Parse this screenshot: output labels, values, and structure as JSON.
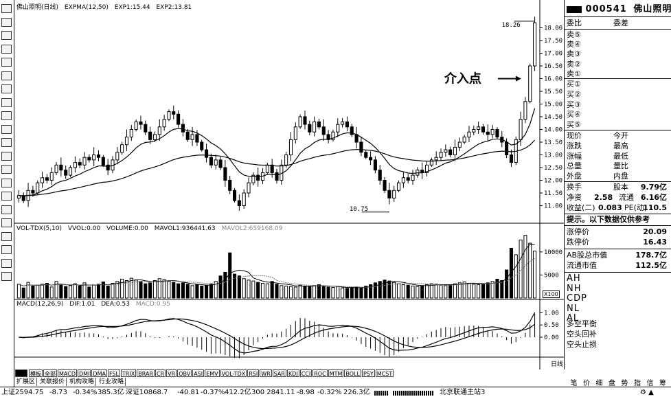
{
  "toolbar": {
    "icons": [
      "logo-icon",
      "grid-icon",
      "list-icon",
      "chart-icon",
      "table-icon",
      "book-icon",
      "cycle-icon",
      "pie-icon",
      "news-icon",
      "card-icon",
      "layout-icon",
      "bars-icon",
      "calc-icon",
      "tools-icon",
      "lock-icon",
      "compass-icon",
      "doc-icon",
      "pen-icon",
      "move-icon",
      "arrow-up-icon",
      "arrow-down-icon"
    ]
  },
  "price_panel": {
    "header": "佛山照明(日线)  EXPMA(12,50)  EXP1:15.44  EXP2:13.81",
    "title": "佛山照明(日线)",
    "ind": "EXPMA(12,50)",
    "exp1": "EXP1:15.44",
    "exp2": "EXP2:13.81",
    "high_label": "18.26",
    "low_label": "10.75",
    "annotation": "介入点"
  },
  "volume_panel": {
    "name": "VOL-TDX(5,10)",
    "vvol": "VVOL:0.00",
    "volume": "VOLUME:0.00",
    "mavol1": "MAVOL1:936441.63",
    "mavol2": "MAVOL2:659168.09",
    "unit": "X100"
  },
  "macd_panel": {
    "name": "MACD(12,26,9)",
    "dif": "DIF:1.01",
    "dea": "DEA:0.53",
    "macd": "MACD:0.95"
  },
  "chart_data": [
    {
      "type": "candlestick",
      "title": "佛山照明(日线)",
      "ylim": [
        10.5,
        18.5
      ],
      "yticks": [
        "18.00",
        "17.50",
        "17.00",
        "16.50",
        "16.00",
        "15.50",
        "15.00",
        "14.50",
        "14.00",
        "13.50",
        "13.00",
        "12.50",
        "12.00",
        "11.50",
        "11.00"
      ],
      "close": [
        11.4,
        11.2,
        11.6,
        11.5,
        11.9,
        12.1,
        12.0,
        12.3,
        12.6,
        12.4,
        12.2,
        12.5,
        12.7,
        12.6,
        12.9,
        12.8,
        13.0,
        12.9,
        12.6,
        12.4,
        12.8,
        13.1,
        13.4,
        13.7,
        14.0,
        14.3,
        14.2,
        13.9,
        13.6,
        13.8,
        14.1,
        14.4,
        14.7,
        14.6,
        14.2,
        13.9,
        13.6,
        13.8,
        13.5,
        13.2,
        12.9,
        12.6,
        12.8,
        12.5,
        12.0,
        11.6,
        11.2,
        11.0,
        11.5,
        11.9,
        12.2,
        12.0,
        12.3,
        12.6,
        12.3,
        12.0,
        12.6,
        13.0,
        13.6,
        14.1,
        14.5,
        14.2,
        13.9,
        14.3,
        14.1,
        13.8,
        13.6,
        13.9,
        14.2,
        14.3,
        14.1,
        13.8,
        13.5,
        13.1,
        12.9,
        12.8,
        12.4,
        12.0,
        11.6,
        11.3,
        11.6,
        11.9,
        12.1,
        12.0,
        12.2,
        12.4,
        12.3,
        12.6,
        12.8,
        12.9,
        13.1,
        13.2,
        13.0,
        13.3,
        13.5,
        13.7,
        13.9,
        14.0,
        14.1,
        13.9,
        13.8,
        14.0,
        13.7,
        13.5,
        13.0,
        12.7,
        13.6,
        14.4,
        15.1,
        16.5,
        18.2
      ],
      "exp1_end": 15.44,
      "exp2_end": 13.81,
      "low_mark": 10.75,
      "high_mark": 18.26
    },
    {
      "type": "bar",
      "title": "VOL-TDX(5,10)",
      "ylim": [
        0,
        14000
      ],
      "yticks": [
        "10000",
        "5000"
      ],
      "unit": "X100",
      "values": [
        3000,
        2200,
        3400,
        2600,
        2800,
        3000,
        3200,
        2400,
        3600,
        2900,
        2500,
        2700,
        3100,
        2600,
        3300,
        2400,
        2800,
        3000,
        3500,
        2600,
        3200,
        3600,
        4100,
        3800,
        4300,
        3900,
        3600,
        3100,
        3300,
        3800,
        4200,
        4000,
        3600,
        3400,
        3100,
        3300,
        3000,
        2700,
        2900,
        2600,
        2800,
        3100,
        3600,
        4800,
        5600,
        9800,
        5200,
        4800,
        4200,
        3900,
        3700,
        3400,
        3200,
        3100,
        3600,
        3000,
        2700,
        2600,
        2500,
        2400,
        2800,
        2600,
        2500,
        2700,
        2900,
        2600,
        2400,
        2300,
        2500,
        2200,
        2100,
        2300,
        2400,
        2200,
        2600,
        2900,
        3300,
        3600,
        3900,
        3700,
        3400,
        3100,
        2900,
        2800,
        2600,
        2500,
        2700,
        2900,
        3100,
        3000,
        2800,
        2700,
        2900,
        3100,
        3300,
        3500,
        3200,
        3000,
        2900,
        3100,
        3300,
        3600,
        4100,
        3800,
        6100,
        10800,
        9400,
        12600,
        13600,
        11900,
        10200
      ]
    },
    {
      "type": "line",
      "title": "MACD(12,26,9)",
      "ylim": [
        -0.7,
        1.15
      ],
      "yticks": [
        "1.00",
        "0.50",
        "0.00"
      ],
      "dif_end": 1.01,
      "dea_end": 0.53,
      "macd_end": 0.95
    }
  ],
  "right_panel": {
    "code": "000541",
    "name": "佛山照明",
    "weibi": "委比",
    "weicha": "委差",
    "sell": [
      "卖⑤",
      "卖④",
      "卖③",
      "卖②",
      "卖①"
    ],
    "buy": [
      "买①",
      "买②",
      "买③",
      "买④",
      "买⑤"
    ],
    "stats_left": [
      "现价",
      "涨跌",
      "涨幅",
      "总量",
      "外盘"
    ],
    "stats_right": [
      "今开",
      "最高",
      "最低",
      "量比",
      "内盘"
    ],
    "turnover_label": "换手",
    "shares_label": "股本",
    "shares_value": "9.79亿",
    "netasset_label": "净资",
    "netasset_value": "2.58",
    "float_label": "流通",
    "float_value": "6.16亿",
    "eps_label": "收益(二)",
    "eps_value": "0.083",
    "pe_label": "PE(动)",
    "pe_value": "110.5",
    "tip": "提示。以下数据仅供参考",
    "limit_up_label": "涨停价",
    "limit_up_value": "20.09",
    "limit_down_label": "跌停价",
    "limit_down_value": "16.43",
    "ab_cap_label": "AB股总市值",
    "ab_cap_value": "178.7亿",
    "float_cap_label": "流通市值",
    "float_cap_value": "112.5亿",
    "levels": [
      "AH",
      "NH",
      "CDP",
      "NL",
      "AL"
    ],
    "signals": [
      "多空平衡",
      "空头回补",
      "空头止损"
    ],
    "bottom_tabs": [
      "笔",
      "价",
      "细",
      "盘",
      "势",
      "指",
      "信",
      "筹"
    ]
  },
  "tabs": {
    "row1": [
      "模板",
      "全部",
      "MACD",
      "DMI",
      "DMA",
      "FSL",
      "TRIX",
      "BRAR",
      "CR",
      "VR",
      "OBV",
      "ASI",
      "EMV",
      "VOL-TDX",
      "RSI",
      "WR",
      "SAR",
      "KDJ",
      "CCI",
      "ROC",
      "MTM",
      "BOLL",
      "PSY",
      "MCST"
    ],
    "row2": [
      "扩展区",
      "关联报价",
      "机构攻略",
      "行业攻略"
    ],
    "daily": "日线"
  },
  "status": {
    "sh": "上证2594.75",
    "sh_chg": "-8.73",
    "sh_pct": "-0.34%",
    "sh_amt": "385.3亿",
    "sz": "深证10868.7",
    "sz_chg": "-40.81",
    "sz_pct": "-0.37%",
    "sz_amt": "412.2亿",
    "hs": "300 2841.11",
    "hs_chg": "-8.98",
    "hs_pct": "-0.32%",
    "hs_amt": "226.3亿",
    "server": "北京联通主站3"
  }
}
